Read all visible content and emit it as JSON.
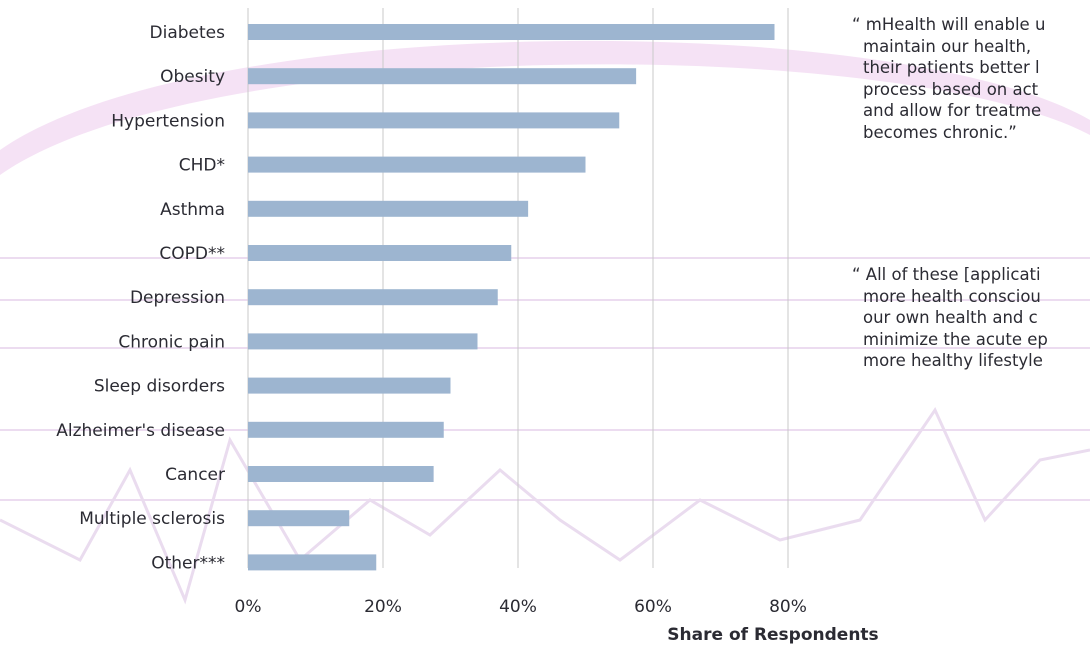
{
  "chart_data": {
    "type": "bar",
    "orientation": "horizontal",
    "categories": [
      "Diabetes",
      "Obesity",
      "Hypertension",
      "CHD*",
      "Asthma",
      "COPD**",
      "Depression",
      "Chronic pain",
      "Sleep disorders",
      "Alzheimer's disease",
      "Cancer",
      "Multiple sclerosis",
      "Other***"
    ],
    "values": [
      78,
      57.5,
      55,
      50,
      41.5,
      39,
      37,
      34,
      30,
      29,
      27.5,
      15,
      19
    ],
    "xlabel": "Share of Respondents",
    "xlim": [
      0,
      80
    ],
    "xticks": [
      "0%",
      "20%",
      "40%",
      "60%",
      "80%"
    ],
    "grid": "vertical",
    "bar_color": "#9db5d0"
  },
  "quotes": [
    {
      "lines": [
        "“ mHealth will enable u",
        "maintain our health,",
        "their patients better l",
        "process based on act",
        "and allow for treatme",
        "becomes chronic.”"
      ]
    },
    {
      "lines": [
        "“ All of these [applicati",
        "more health consciou",
        "our own health and c",
        "minimize the acute ep",
        "more healthy lifestyle"
      ]
    }
  ]
}
